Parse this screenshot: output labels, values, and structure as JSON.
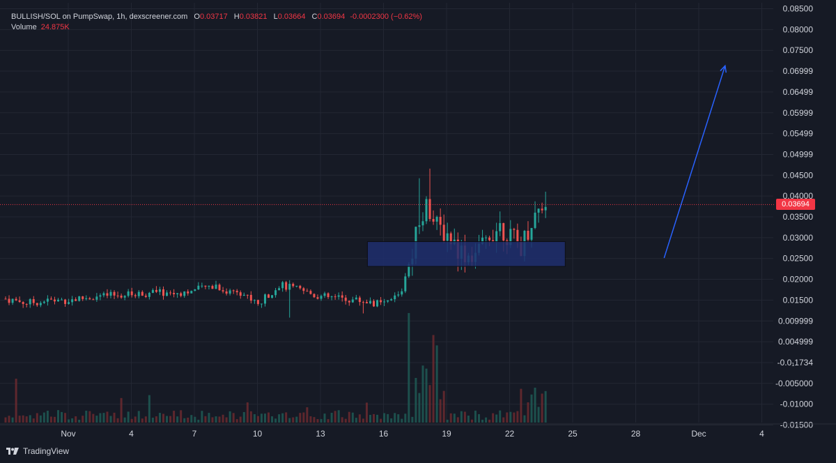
{
  "legend": {
    "symbol": "BULLISH/SOL on PumpSwap, 1h, dexscreener.com",
    "open_label": "O",
    "open": "0.03717",
    "high_label": "H",
    "high": "0.03821",
    "low_label": "L",
    "low": "0.03664",
    "close_label": "C",
    "close": "0.03694",
    "change": "-0.0002300 (−0.62%)",
    "volume_label": "Volume",
    "volume": "24.875K"
  },
  "last_price_tag": "0.03694",
  "brand": "TradingView",
  "colors": {
    "background": "#161a25",
    "up": "#26a69a",
    "down": "#ef5350",
    "accent": "#f23645",
    "zone": "#1f2f6e",
    "arrow": "#2962ff"
  },
  "chart_data": {
    "type": "candlestick",
    "x_tick_labels": [
      "Nov",
      "4",
      "7",
      "10",
      "13",
      "16",
      "19",
      "22",
      "25",
      "28",
      "Dec",
      "4"
    ],
    "y_tick_labels": [
      "0.08500",
      "0.08000",
      "0.07500",
      "0.06999",
      "0.06499",
      "0.05999",
      "0.05499",
      "0.04999",
      "0.04500",
      "0.04000",
      "0.03500",
      "0.03000",
      "0.02500",
      "0.02000",
      "0.01500",
      "0.009999",
      "0.004999",
      "-0.0₁1734",
      "-0.005000",
      "-0.01000",
      "-0.01500"
    ],
    "ylim": [
      -0.015,
      0.085
    ],
    "x_day_range": [
      0,
      35.5
    ],
    "price_points": [
      [
        0,
        0.0145
      ],
      [
        1,
        0.0135
      ],
      [
        2,
        0.014
      ],
      [
        3,
        0.0142
      ],
      [
        4,
        0.0148
      ],
      [
        5,
        0.0152
      ],
      [
        6,
        0.0155
      ],
      [
        7,
        0.016
      ],
      [
        8,
        0.0158
      ],
      [
        9,
        0.0165
      ],
      [
        10,
        0.0178
      ],
      [
        10.5,
        0.016
      ],
      [
        11,
        0.0168
      ],
      [
        12,
        0.013
      ],
      [
        12.6,
        0.016
      ],
      [
        13,
        0.0178
      ],
      [
        14,
        0.0165
      ],
      [
        15,
        0.015
      ],
      [
        16,
        0.0145
      ],
      [
        17,
        0.014
      ],
      [
        18,
        0.013
      ],
      [
        18.8,
        0.016
      ],
      [
        19.2,
        0.024
      ],
      [
        19.6,
        0.032
      ],
      [
        20,
        0.038
      ],
      [
        20.4,
        0.032
      ],
      [
        21,
        0.03
      ],
      [
        21.6,
        0.026
      ],
      [
        22,
        0.025
      ],
      [
        22.6,
        0.026
      ],
      [
        23,
        0.03
      ],
      [
        23.5,
        0.032
      ],
      [
        24,
        0.029
      ],
      [
        24.5,
        0.027
      ],
      [
        25,
        0.033
      ],
      [
        25.3,
        0.036
      ],
      [
        25.7,
        0.038
      ]
    ],
    "highs": [
      [
        19.7,
        0.0432
      ],
      [
        20.2,
        0.0455
      ],
      [
        25.6,
        0.04
      ]
    ],
    "lows": [
      [
        13.5,
        0.01
      ],
      [
        17,
        0.011
      ],
      [
        21.5,
        0.021
      ]
    ],
    "last_price": 0.03694,
    "zone": {
      "x_start": 17.2,
      "x_end": 26.6,
      "y_low": 0.0222,
      "y_high": 0.0281
    },
    "arrow": {
      "x_start": 31.3,
      "y_start": 0.0242,
      "x_end": 34.2,
      "y_end": 0.07
    },
    "volume_series": "Volume",
    "volume_last": "24.875K",
    "grid": true,
    "price_axis": "right"
  }
}
